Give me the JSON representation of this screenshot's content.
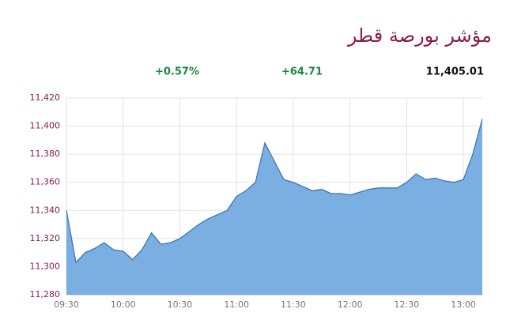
{
  "chart_data": {
    "type": "area",
    "title": "مؤشر بورصة قطر",
    "annotations": [
      "+0.57%",
      "+64.71",
      "11,405.01"
    ],
    "annotation_colors": [
      "#1b8a3c",
      "#1b8a3c",
      "#111111"
    ],
    "x": [
      "09:30",
      "09:35",
      "09:40",
      "09:45",
      "09:50",
      "09:55",
      "10:00",
      "10:05",
      "10:10",
      "10:15",
      "10:20",
      "10:25",
      "10:30",
      "10:35",
      "10:40",
      "10:45",
      "10:50",
      "10:55",
      "11:00",
      "11:05",
      "11:10",
      "11:15",
      "11:20",
      "11:25",
      "11:30",
      "11:35",
      "11:40",
      "11:45",
      "11:50",
      "11:55",
      "12:00",
      "12:05",
      "12:10",
      "12:15",
      "12:20",
      "12:25",
      "12:30",
      "12:35",
      "12:40",
      "12:45",
      "12:50",
      "12:55",
      "13:00",
      "13:05",
      "13:10"
    ],
    "values": [
      11340,
      11303,
      11310,
      11313,
      11317,
      11312,
      11311,
      11305,
      11312,
      11324,
      11316,
      11317,
      11320,
      11325,
      11330,
      11334,
      11337,
      11340,
      11350,
      11354,
      11360,
      11388,
      11375,
      11362,
      11360,
      11357,
      11354,
      11355,
      11352,
      11352,
      11351,
      11353,
      11355,
      11356,
      11356,
      11356,
      11360,
      11366,
      11362,
      11363,
      11361,
      11360,
      11362,
      11380,
      11405
    ],
    "color": "#74aadf",
    "line_color": "#3b79b9",
    "xlim": [
      "09:30",
      "13:10"
    ],
    "xticks": [
      "09:30",
      "10:00",
      "10:30",
      "11:00",
      "11:30",
      "12:00",
      "12:30",
      "13:00"
    ],
    "ylim": [
      11280,
      11420
    ],
    "yticks": [
      {
        "value": 11280,
        "label": "11,280"
      },
      {
        "value": 11300,
        "label": "11,300"
      },
      {
        "value": 11320,
        "label": "11,320"
      },
      {
        "value": 11340,
        "label": "11,340"
      },
      {
        "value": 11360,
        "label": "11,360"
      },
      {
        "value": 11380,
        "label": "11,380"
      },
      {
        "value": 11400,
        "label": "11,400"
      },
      {
        "value": 11420,
        "label": "11,420"
      }
    ],
    "grid": true
  }
}
